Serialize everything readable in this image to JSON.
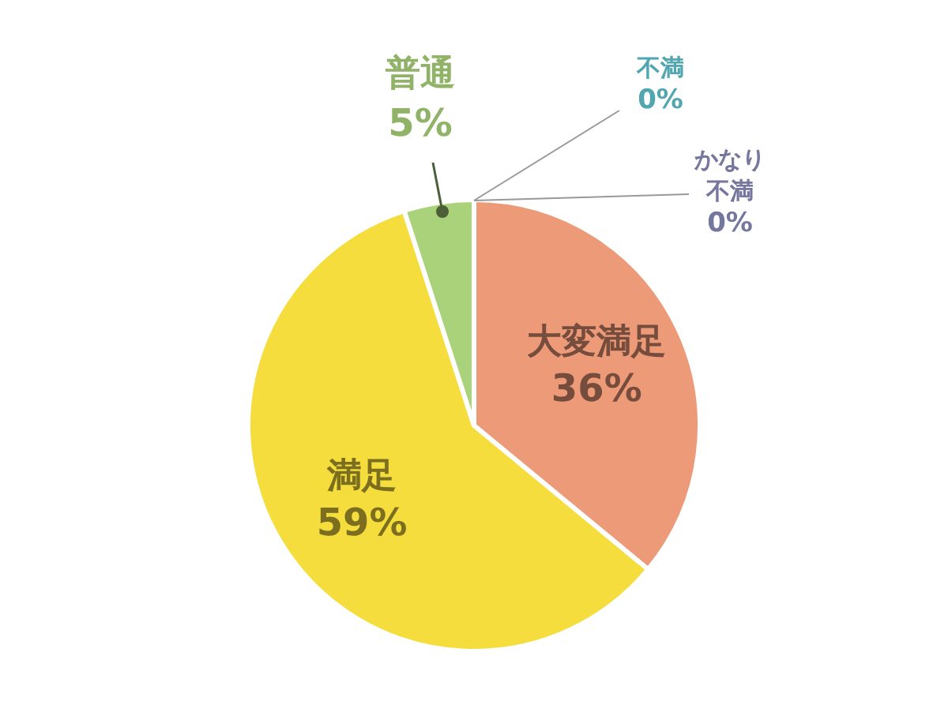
{
  "chart_data": {
    "type": "pie",
    "categories": [
      "大変満足",
      "満足",
      "普通",
      "不満",
      "かなり不満"
    ],
    "values": [
      36,
      59,
      5,
      0,
      0
    ],
    "colors": [
      "#ec9a78",
      "#f6dd3e",
      "#a9d27a",
      "#5fc3cf",
      "#9c9fd2"
    ],
    "value_labels": [
      "36%",
      "59%",
      "5%",
      "0%",
      "0%"
    ],
    "legend": false
  }
}
